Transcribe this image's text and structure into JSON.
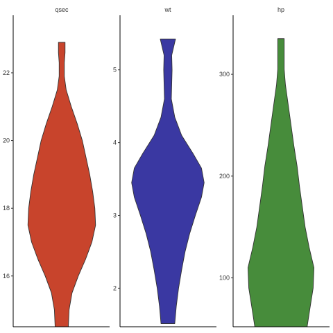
{
  "chart_data": [
    {
      "type": "violin",
      "title": "qsec",
      "color": "#c8442c",
      "ylim": [
        14.5,
        23.7
      ],
      "yticks": [
        16,
        18,
        20,
        22
      ],
      "profile": [
        [
          14.5,
          0.18
        ],
        [
          15.0,
          0.2
        ],
        [
          15.5,
          0.28
        ],
        [
          16.0,
          0.45
        ],
        [
          16.5,
          0.65
        ],
        [
          17.0,
          0.82
        ],
        [
          17.5,
          0.92
        ],
        [
          18.0,
          0.9
        ],
        [
          18.5,
          0.84
        ],
        [
          19.0,
          0.76
        ],
        [
          19.5,
          0.66
        ],
        [
          20.0,
          0.56
        ],
        [
          20.5,
          0.42
        ],
        [
          21.0,
          0.26
        ],
        [
          21.5,
          0.12
        ],
        [
          21.9,
          0.07
        ],
        [
          22.3,
          0.07
        ],
        [
          22.6,
          0.09
        ],
        [
          22.9,
          0.09
        ]
      ]
    },
    {
      "type": "violin",
      "title": "wt",
      "color": "#3a38a2",
      "ylim": [
        1.47,
        5.75
      ],
      "yticks": [
        2,
        3,
        4,
        5
      ],
      "profile": [
        [
          1.513,
          0.18
        ],
        [
          1.75,
          0.22
        ],
        [
          2.0,
          0.28
        ],
        [
          2.25,
          0.36
        ],
        [
          2.5,
          0.45
        ],
        [
          2.75,
          0.57
        ],
        [
          3.0,
          0.72
        ],
        [
          3.25,
          0.88
        ],
        [
          3.45,
          0.95
        ],
        [
          3.65,
          0.88
        ],
        [
          3.85,
          0.66
        ],
        [
          4.1,
          0.36
        ],
        [
          4.35,
          0.18
        ],
        [
          4.6,
          0.09
        ],
        [
          4.8,
          0.1
        ],
        [
          5.0,
          0.11
        ],
        [
          5.2,
          0.1
        ],
        [
          5.424,
          0.2
        ]
      ]
    },
    {
      "type": "violin",
      "title": "hp",
      "color": "#478c3b",
      "ylim": [
        52,
        358
      ],
      "yticks": [
        100,
        200,
        300
      ],
      "profile": [
        [
          52,
          0.65
        ],
        [
          70,
          0.72
        ],
        [
          90,
          0.8
        ],
        [
          110,
          0.82
        ],
        [
          130,
          0.7
        ],
        [
          150,
          0.6
        ],
        [
          170,
          0.53
        ],
        [
          190,
          0.46
        ],
        [
          210,
          0.4
        ],
        [
          230,
          0.32
        ],
        [
          250,
          0.25
        ],
        [
          270,
          0.18
        ],
        [
          290,
          0.11
        ],
        [
          305,
          0.08
        ],
        [
          320,
          0.08
        ],
        [
          335,
          0.08
        ]
      ]
    }
  ]
}
